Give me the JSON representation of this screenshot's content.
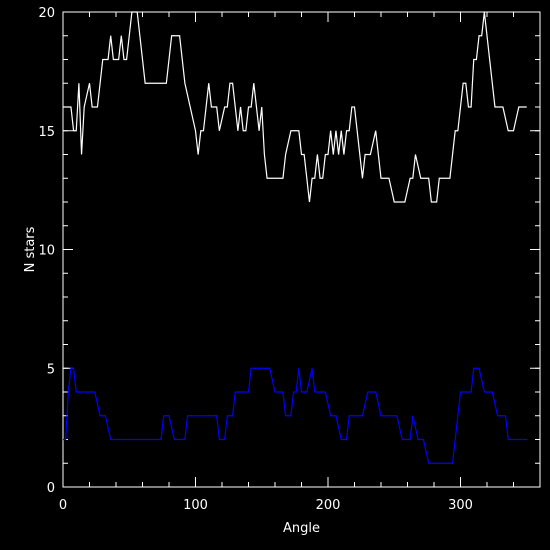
{
  "chart_data": {
    "type": "line",
    "xlabel": "Angle",
    "ylabel": "N stars",
    "xlim": [
      0,
      360
    ],
    "ylim": [
      0,
      20
    ],
    "x_major_ticks": [
      0,
      100,
      200,
      300
    ],
    "x_tick_labels": [
      "0",
      "100",
      "200",
      "300"
    ],
    "x_minor_step": 20,
    "y_major_ticks": [
      0,
      5,
      10,
      15,
      20
    ],
    "y_tick_labels": [
      "0",
      "5",
      "10",
      "15",
      "20"
    ],
    "y_minor_step": 1,
    "grid": false,
    "background_color": "#000000",
    "axis_color": "#ffffff",
    "series": [
      {
        "color": "#ffffff",
        "points": [
          [
            0,
            16
          ],
          [
            6,
            16
          ],
          [
            8,
            15
          ],
          [
            10,
            15
          ],
          [
            12,
            17
          ],
          [
            14,
            14
          ],
          [
            16,
            16
          ],
          [
            20,
            17
          ],
          [
            22,
            16
          ],
          [
            26,
            16
          ],
          [
            30,
            18
          ],
          [
            34,
            18
          ],
          [
            36,
            19
          ],
          [
            38,
            18
          ],
          [
            42,
            18
          ],
          [
            44,
            19
          ],
          [
            46,
            18
          ],
          [
            48,
            18
          ],
          [
            50,
            19
          ],
          [
            52,
            20
          ],
          [
            56,
            20
          ],
          [
            58,
            19
          ],
          [
            62,
            17
          ],
          [
            78,
            17
          ],
          [
            82,
            19
          ],
          [
            88,
            19
          ],
          [
            92,
            17
          ],
          [
            96,
            16
          ],
          [
            100,
            15
          ],
          [
            102,
            14
          ],
          [
            104,
            15
          ],
          [
            106,
            15
          ],
          [
            110,
            17
          ],
          [
            112,
            16
          ],
          [
            116,
            16
          ],
          [
            118,
            15
          ],
          [
            122,
            16
          ],
          [
            124,
            16
          ],
          [
            126,
            17
          ],
          [
            128,
            17
          ],
          [
            130,
            16
          ],
          [
            132,
            15
          ],
          [
            134,
            16
          ],
          [
            136,
            15
          ],
          [
            138,
            15
          ],
          [
            140,
            16
          ],
          [
            142,
            16
          ],
          [
            144,
            17
          ],
          [
            146,
            16
          ],
          [
            148,
            15
          ],
          [
            150,
            16
          ],
          [
            152,
            14
          ],
          [
            154,
            13
          ],
          [
            166,
            13
          ],
          [
            168,
            14
          ],
          [
            172,
            15
          ],
          [
            178,
            15
          ],
          [
            180,
            14
          ],
          [
            182,
            14
          ],
          [
            184,
            13
          ],
          [
            186,
            12
          ],
          [
            188,
            13
          ],
          [
            190,
            13
          ],
          [
            192,
            14
          ],
          [
            194,
            13
          ],
          [
            196,
            13
          ],
          [
            198,
            14
          ],
          [
            200,
            14
          ],
          [
            202,
            15
          ],
          [
            204,
            14
          ],
          [
            206,
            15
          ],
          [
            208,
            14
          ],
          [
            210,
            15
          ],
          [
            212,
            14
          ],
          [
            214,
            15
          ],
          [
            216,
            15
          ],
          [
            218,
            16
          ],
          [
            220,
            16
          ],
          [
            222,
            15
          ],
          [
            226,
            13
          ],
          [
            228,
            14
          ],
          [
            232,
            14
          ],
          [
            236,
            15
          ],
          [
            238,
            14
          ],
          [
            240,
            13
          ],
          [
            246,
            13
          ],
          [
            250,
            12
          ],
          [
            258,
            12
          ],
          [
            262,
            13
          ],
          [
            264,
            13
          ],
          [
            266,
            14
          ],
          [
            270,
            13
          ],
          [
            276,
            13
          ],
          [
            278,
            12
          ],
          [
            282,
            12
          ],
          [
            284,
            13
          ],
          [
            292,
            13
          ],
          [
            294,
            14
          ],
          [
            296,
            15
          ],
          [
            298,
            15
          ],
          [
            300,
            16
          ],
          [
            302,
            17
          ],
          [
            304,
            17
          ],
          [
            306,
            16
          ],
          [
            308,
            16
          ],
          [
            310,
            18
          ],
          [
            312,
            18
          ],
          [
            314,
            19
          ],
          [
            316,
            19
          ],
          [
            318,
            20
          ],
          [
            320,
            19
          ],
          [
            322,
            18
          ],
          [
            324,
            17
          ],
          [
            326,
            16
          ],
          [
            332,
            16
          ],
          [
            336,
            15
          ],
          [
            340,
            15
          ],
          [
            344,
            16
          ],
          [
            348,
            16
          ],
          [
            350,
            16
          ]
        ]
      },
      {
        "color": "#0000ff",
        "points": [
          [
            0,
            2
          ],
          [
            2,
            2
          ],
          [
            4,
            4
          ],
          [
            6,
            5
          ],
          [
            8,
            5
          ],
          [
            10,
            4
          ],
          [
            24,
            4
          ],
          [
            28,
            3
          ],
          [
            32,
            3
          ],
          [
            36,
            2
          ],
          [
            74,
            2
          ],
          [
            76,
            3
          ],
          [
            80,
            3
          ],
          [
            84,
            2
          ],
          [
            92,
            2
          ],
          [
            94,
            3
          ],
          [
            116,
            3
          ],
          [
            118,
            2
          ],
          [
            122,
            2
          ],
          [
            124,
            3
          ],
          [
            128,
            3
          ],
          [
            130,
            4
          ],
          [
            134,
            4
          ],
          [
            138,
            4
          ],
          [
            140,
            4
          ],
          [
            142,
            5
          ],
          [
            156,
            5
          ],
          [
            160,
            4
          ],
          [
            166,
            4
          ],
          [
            168,
            3
          ],
          [
            172,
            3
          ],
          [
            174,
            4
          ],
          [
            176,
            4
          ],
          [
            178,
            5
          ],
          [
            180,
            4
          ],
          [
            184,
            4
          ],
          [
            188,
            5
          ],
          [
            190,
            4
          ],
          [
            192,
            4
          ],
          [
            198,
            4
          ],
          [
            202,
            3
          ],
          [
            206,
            3
          ],
          [
            210,
            2
          ],
          [
            214,
            2
          ],
          [
            216,
            3
          ],
          [
            226,
            3
          ],
          [
            230,
            4
          ],
          [
            236,
            4
          ],
          [
            240,
            3
          ],
          [
            252,
            3
          ],
          [
            256,
            2
          ],
          [
            262,
            2
          ],
          [
            264,
            3
          ],
          [
            268,
            2
          ],
          [
            270,
            2
          ],
          [
            272,
            2
          ],
          [
            276,
            1
          ],
          [
            294,
            1
          ],
          [
            296,
            2
          ],
          [
            298,
            3
          ],
          [
            300,
            4
          ],
          [
            304,
            4
          ],
          [
            306,
            4
          ],
          [
            308,
            4
          ],
          [
            310,
            5
          ],
          [
            314,
            5
          ],
          [
            318,
            4
          ],
          [
            324,
            4
          ],
          [
            328,
            3
          ],
          [
            334,
            3
          ],
          [
            336,
            2
          ],
          [
            340,
            2
          ],
          [
            350,
            2
          ]
        ]
      }
    ]
  }
}
